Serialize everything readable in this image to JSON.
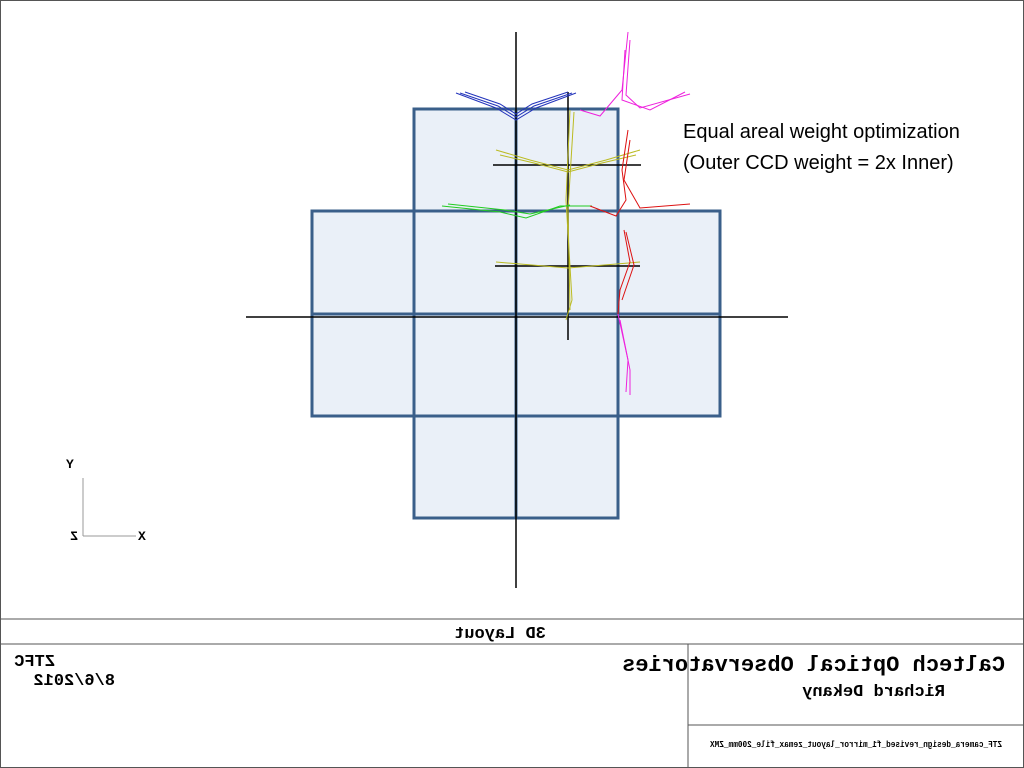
{
  "annotation": {
    "line1": "Equal areal weight optimization",
    "line2": "(Outer CCD weight = 2x Inner)"
  },
  "axes": {
    "y": "Y",
    "z": "Z",
    "x": "X"
  },
  "title_block": {
    "plot_title": "3D Layout",
    "project": "ZTFC",
    "date": "8/6/2012",
    "organization": "Caltech Optical Observatories",
    "author": "Richard Dekany",
    "file": "ZTF_camera_design_revised_f1_mirror_layout_zemax_file_200mm_ZMX"
  }
}
